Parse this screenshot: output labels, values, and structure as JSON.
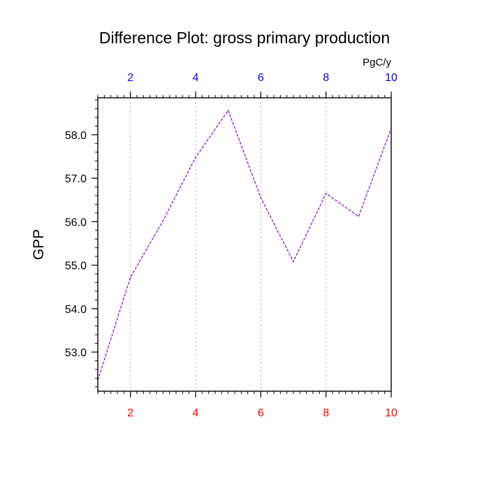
{
  "chart_data": {
    "type": "line",
    "title": "Difference Plot: gross primary production",
    "ylabel": "GPP",
    "units_label": "PgC/y",
    "x": [
      1,
      2,
      3,
      4,
      5,
      6,
      7,
      8,
      9,
      10
    ],
    "series": [
      {
        "values": [
          52.35,
          54.72,
          56.02,
          57.48,
          58.56,
          56.55,
          55.08,
          56.65,
          56.12,
          58.15
        ],
        "color": "#7b00ff",
        "dash": "dashed"
      }
    ],
    "xlim": [
      1,
      10
    ],
    "ylim": [
      52.1,
      58.85
    ],
    "x_ticks": [
      2,
      4,
      6,
      8,
      10
    ],
    "x_tick_labels": [
      "2",
      "4",
      "6",
      "8",
      "10"
    ],
    "y_ticks": [
      53,
      54,
      55,
      56,
      57,
      58
    ],
    "y_tick_labels": [
      "53.0",
      "54.0",
      "55.0",
      "56.0",
      "57.0",
      "58.0"
    ],
    "bottom_axis_label_color": "#ff0000",
    "top_axis_label_color": "#0000ff",
    "vertical_grid": true,
    "grid_color": "#bdbdbd"
  }
}
